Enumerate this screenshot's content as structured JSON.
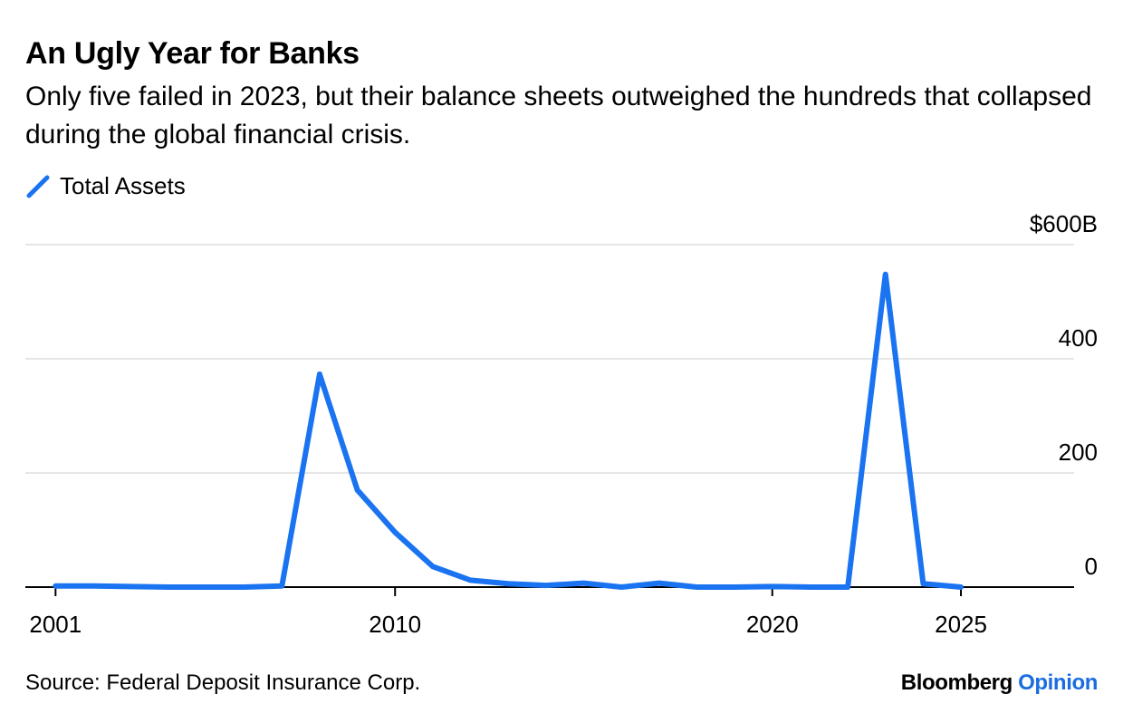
{
  "header": {
    "title": "An Ugly Year for Banks",
    "subtitle": "Only five failed in 2023, but their balance sheets outweighed the hundreds that collapsed during the global financial crisis."
  },
  "footer": {
    "source": "Source: Federal Deposit Insurance Corp.",
    "brand_main": "Bloomberg",
    "brand_accent": "Opinion"
  },
  "colors": {
    "series": "#1a73f0",
    "grid": "#e6e6e6",
    "axis": "#000000",
    "brand_accent": "#1a6de0"
  },
  "chart_data": {
    "type": "line",
    "title": "An Ugly Year for Banks",
    "subtitle": "Only five failed in 2023, but their balance sheets outweighed the hundreds that collapsed during the global financial crisis.",
    "xlabel": "",
    "ylabel": "",
    "xlim": [
      2000.2,
      2028.0
    ],
    "ylim": [
      0,
      600
    ],
    "x_ticks": [
      2001,
      2010,
      2020,
      2025
    ],
    "x_tick_labels": [
      "2001",
      "2010",
      "2020",
      "2025"
    ],
    "y_ticks": [
      0,
      200,
      400,
      600
    ],
    "y_tick_labels": [
      "0",
      "200",
      "400",
      "$600B"
    ],
    "y_axis_side": "right",
    "grid": true,
    "legend": "top-left",
    "series": [
      {
        "name": "Total Assets",
        "x": [
          2001,
          2002,
          2003,
          2004,
          2005,
          2006,
          2007,
          2008,
          2009,
          2010,
          2011,
          2012,
          2013,
          2014,
          2015,
          2016,
          2017,
          2018,
          2019,
          2020,
          2021,
          2022,
          2023,
          2024,
          2025
        ],
        "y": [
          2,
          2,
          1,
          0,
          0,
          0,
          2,
          373,
          170,
          96,
          36,
          12,
          6,
          3,
          7,
          0,
          7,
          0,
          0,
          1,
          0,
          0,
          548,
          6,
          0
        ]
      }
    ]
  }
}
